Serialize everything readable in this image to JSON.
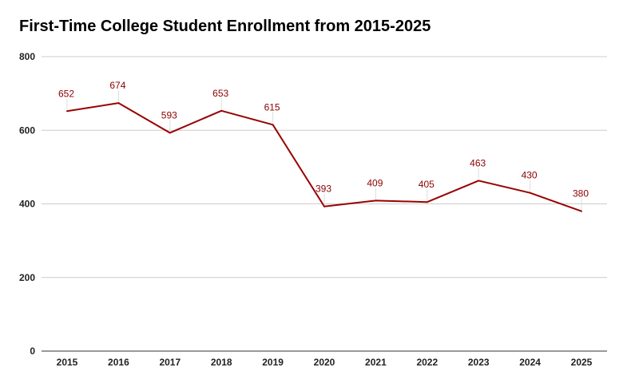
{
  "chart_data": {
    "type": "line",
    "title": "First-Time College Student Enrollment from 2015-2025",
    "xlabel": "",
    "ylabel": "",
    "categories": [
      "2015",
      "2016",
      "2017",
      "2018",
      "2019",
      "2020",
      "2021",
      "2022",
      "2023",
      "2024",
      "2025"
    ],
    "series": [
      {
        "values": [
          652,
          674,
          593,
          653,
          615,
          393,
          409,
          405,
          463,
          430,
          380
        ]
      }
    ],
    "ylim": [
      0,
      800
    ],
    "yticks": [
      0,
      200,
      400,
      600,
      800
    ],
    "grid": true,
    "legend": "none",
    "line_color": "#990000",
    "label_color": "#8b0000",
    "grid_color": "#cccccc"
  }
}
